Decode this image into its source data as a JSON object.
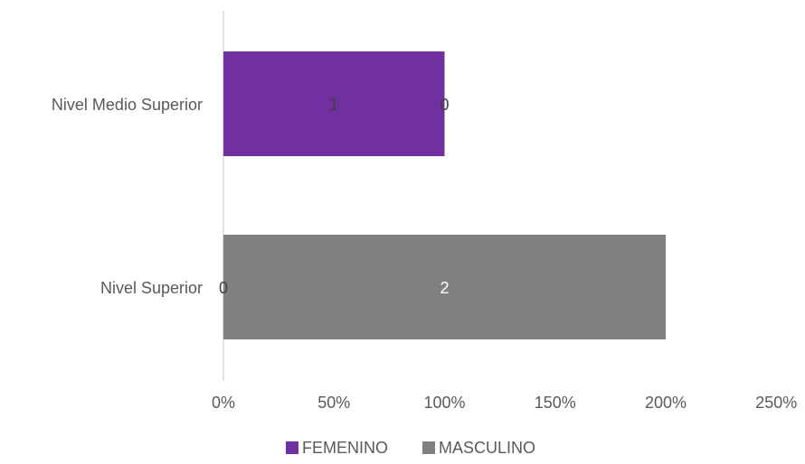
{
  "chart_data": {
    "type": "bar",
    "orientation": "horizontal",
    "stacked": true,
    "categories": [
      "Nivel Medio Superior",
      "Nivel Superior"
    ],
    "series": [
      {
        "name": "FEMENINO",
        "color": "#7030A0",
        "values": [
          1,
          0
        ],
        "data_labels": [
          "1",
          "0"
        ],
        "label_color": "#404040"
      },
      {
        "name": "MASCULINO",
        "color": "#808080",
        "values": [
          0,
          2
        ],
        "data_labels": [
          "0",
          "2"
        ],
        "label_color": "#ffffff"
      }
    ],
    "x_ticks": [
      "0%",
      "50%",
      "100%",
      "150%",
      "200%",
      "250%"
    ],
    "xlim": [
      0,
      2.5
    ],
    "legend_position": "bottom",
    "grid": false
  }
}
